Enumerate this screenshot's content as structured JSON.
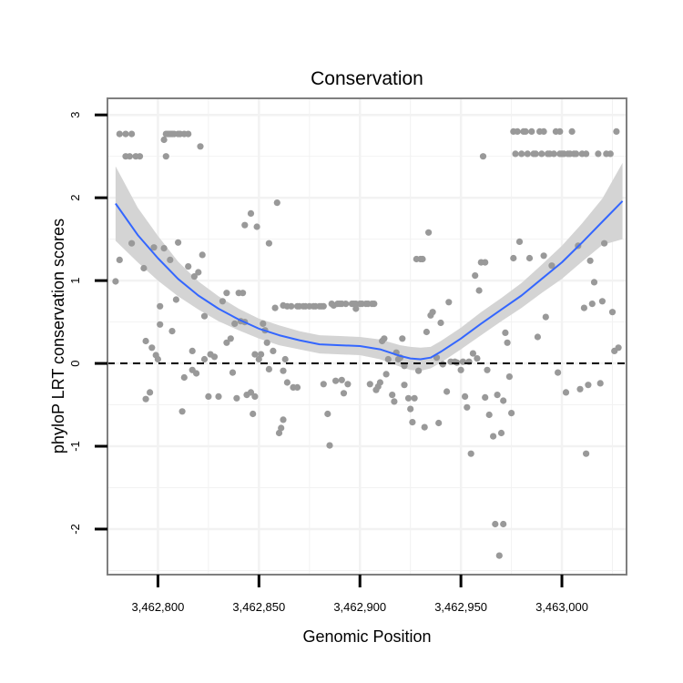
{
  "chart_data": {
    "type": "scatter",
    "title": "Conservation",
    "xlabel": "Genomic Position",
    "ylabel": "phyloP LRT conservation scores",
    "xlim": [
      3462775,
      3463032
    ],
    "ylim": [
      -2.55,
      3.2
    ],
    "x_ticks": [
      3462800,
      3462850,
      3462900,
      3462950,
      3463000
    ],
    "x_tick_labels": [
      "3,462,800",
      "3,462,850",
      "3,462,900",
      "3,462,950",
      "3,463,000"
    ],
    "y_ticks": [
      -2,
      -1,
      0,
      1,
      2,
      3
    ],
    "y_tick_labels": [
      "-2",
      "-1",
      "0",
      "1",
      "2",
      "3"
    ],
    "reference_line": {
      "y": 0,
      "style": "dashed"
    },
    "colors": {
      "points": "#999999",
      "smooth": "#3366FF",
      "ribbon": "#D4D4D4",
      "grid": "#F2F2F2",
      "border": "#7F7F7F"
    },
    "smooth": {
      "x": [
        3462779,
        3462790,
        3462800,
        3462810,
        3462820,
        3462830,
        3462840,
        3462850,
        3462860,
        3462870,
        3462880,
        3462890,
        3462900,
        3462910,
        3462920,
        3462925,
        3462930,
        3462935,
        3462940,
        3462950,
        3462960,
        3462970,
        3462980,
        3462990,
        3463000,
        3463010,
        3463020,
        3463030
      ],
      "y": [
        1.93,
        1.55,
        1.27,
        1.02,
        0.82,
        0.66,
        0.53,
        0.42,
        0.34,
        0.28,
        0.23,
        0.22,
        0.21,
        0.17,
        0.09,
        0.06,
        0.05,
        0.07,
        0.14,
        0.3,
        0.48,
        0.65,
        0.82,
        1.02,
        1.22,
        1.46,
        1.71,
        1.96
      ],
      "lower": [
        1.48,
        1.22,
        1.0,
        0.81,
        0.65,
        0.51,
        0.4,
        0.3,
        0.22,
        0.17,
        0.12,
        0.11,
        0.1,
        0.05,
        -0.04,
        -0.08,
        -0.09,
        -0.06,
        0.01,
        0.17,
        0.34,
        0.51,
        0.67,
        0.85,
        1.02,
        1.23,
        1.43,
        1.5
      ],
      "upper": [
        2.38,
        1.88,
        1.54,
        1.23,
        0.99,
        0.81,
        0.66,
        0.54,
        0.46,
        0.39,
        0.34,
        0.33,
        0.32,
        0.29,
        0.22,
        0.2,
        0.19,
        0.2,
        0.27,
        0.43,
        0.62,
        0.79,
        0.97,
        1.19,
        1.42,
        1.69,
        1.99,
        2.42
      ]
    },
    "points": [
      [
        3462779,
        0.99
      ],
      [
        3462781,
        2.77
      ],
      [
        3462781,
        1.25
      ],
      [
        3462784,
        2.77
      ],
      [
        3462784,
        2.5
      ],
      [
        3462786,
        2.5
      ],
      [
        3462787,
        2.77
      ],
      [
        3462787,
        1.45
      ],
      [
        3462789,
        2.5
      ],
      [
        3462791,
        2.5
      ],
      [
        3462793,
        1.15
      ],
      [
        3462794,
        0.27
      ],
      [
        3462794,
        -0.43
      ],
      [
        3462796,
        -0.35
      ],
      [
        3462797,
        0.19
      ],
      [
        3462798,
        1.4
      ],
      [
        3462799,
        0.1
      ],
      [
        3462800,
        0.05
      ],
      [
        3462801,
        0.47
      ],
      [
        3462801,
        0.69
      ],
      [
        3462803,
        2.7
      ],
      [
        3462803,
        1.39
      ],
      [
        3462804,
        2.5
      ],
      [
        3462804,
        2.77
      ],
      [
        3462805,
        2.77
      ],
      [
        3462806,
        2.77
      ],
      [
        3462806,
        1.25
      ],
      [
        3462807,
        2.77
      ],
      [
        3462807,
        0.39
      ],
      [
        3462808,
        2.77
      ],
      [
        3462809,
        0.77
      ],
      [
        3462810,
        2.77
      ],
      [
        3462810,
        1.46
      ],
      [
        3462811,
        2.77
      ],
      [
        3462812,
        -0.58
      ],
      [
        3462813,
        -0.17
      ],
      [
        3462813,
        2.77
      ],
      [
        3462815,
        1.17
      ],
      [
        3462815,
        2.77
      ],
      [
        3462817,
        0.15
      ],
      [
        3462817,
        -0.08
      ],
      [
        3462818,
        1.05
      ],
      [
        3462819,
        -0.12
      ],
      [
        3462820,
        1.1
      ],
      [
        3462821,
        2.62
      ],
      [
        3462822,
        1.31
      ],
      [
        3462823,
        0.05
      ],
      [
        3462823,
        0.57
      ],
      [
        3462825,
        -0.4
      ],
      [
        3462826,
        0.11
      ],
      [
        3462828,
        0.08
      ],
      [
        3462830,
        -0.4
      ],
      [
        3462832,
        0.75
      ],
      [
        3462834,
        0.85
      ],
      [
        3462834,
        0.25
      ],
      [
        3462836,
        0.3
      ],
      [
        3462837,
        -0.11
      ],
      [
        3462838,
        0.48
      ],
      [
        3462839,
        -0.42
      ],
      [
        3462840,
        0.85
      ],
      [
        3462841,
        0.51
      ],
      [
        3462842,
        0.85
      ],
      [
        3462843,
        1.67
      ],
      [
        3462843,
        0.5
      ],
      [
        3462844,
        -0.38
      ],
      [
        3462846,
        1.81
      ],
      [
        3462846,
        -0.35
      ],
      [
        3462847,
        -0.61
      ],
      [
        3462848,
        -0.4
      ],
      [
        3462848,
        0.11
      ],
      [
        3462849,
        1.65
      ],
      [
        3462850,
        0.05
      ],
      [
        3462851,
        0.11
      ],
      [
        3462852,
        0.48
      ],
      [
        3462853,
        0.4
      ],
      [
        3462854,
        0.25
      ],
      [
        3462855,
        -0.07
      ],
      [
        3462855,
        1.45
      ],
      [
        3462857,
        0.15
      ],
      [
        3462858,
        0.67
      ],
      [
        3462859,
        1.94
      ],
      [
        3462860,
        -0.84
      ],
      [
        3462861,
        -0.78
      ],
      [
        3462862,
        -0.09
      ],
      [
        3462862,
        -0.68
      ],
      [
        3462862,
        0.7
      ],
      [
        3462863,
        0.05
      ],
      [
        3462864,
        -0.23
      ],
      [
        3462864,
        0.69
      ],
      [
        3462866,
        0.69
      ],
      [
        3462867,
        -0.29
      ],
      [
        3462869,
        -0.29
      ],
      [
        3462869,
        0.69
      ],
      [
        3462870,
        0.69
      ],
      [
        3462872,
        0.69
      ],
      [
        3462873,
        0.69
      ],
      [
        3462875,
        0.69
      ],
      [
        3462877,
        0.69
      ],
      [
        3462878,
        0.69
      ],
      [
        3462880,
        0.69
      ],
      [
        3462881,
        0.69
      ],
      [
        3462882,
        0.69
      ],
      [
        3462882,
        -0.25
      ],
      [
        3462884,
        -0.61
      ],
      [
        3462885,
        -0.99
      ],
      [
        3462886,
        0.72
      ],
      [
        3462887,
        0.7
      ],
      [
        3462888,
        -0.21
      ],
      [
        3462889,
        0.72
      ],
      [
        3462890,
        0.72
      ],
      [
        3462891,
        -0.2
      ],
      [
        3462891,
        0.72
      ],
      [
        3462892,
        -0.36
      ],
      [
        3462893,
        0.72
      ],
      [
        3462894,
        -0.25
      ],
      [
        3462896,
        0.72
      ],
      [
        3462897,
        0.72
      ],
      [
        3462898,
        0.72
      ],
      [
        3462898,
        0.66
      ],
      [
        3462900,
        0.72
      ],
      [
        3462901,
        0.72
      ],
      [
        3462903,
        0.72
      ],
      [
        3462904,
        0.72
      ],
      [
        3462905,
        -0.25
      ],
      [
        3462906,
        0.72
      ],
      [
        3462907,
        0.72
      ],
      [
        3462908,
        -0.32
      ],
      [
        3462909,
        -0.28
      ],
      [
        3462910,
        -0.23
      ],
      [
        3462911,
        0.27
      ],
      [
        3462912,
        0.3
      ],
      [
        3462913,
        -0.13
      ],
      [
        3462914,
        0.05
      ],
      [
        3462916,
        -0.38
      ],
      [
        3462917,
        -0.46
      ],
      [
        3462918,
        0.13
      ],
      [
        3462919,
        0.05
      ],
      [
        3462920,
        0.07
      ],
      [
        3462921,
        0.3
      ],
      [
        3462922,
        -0.03
      ],
      [
        3462922,
        -0.26
      ],
      [
        3462924,
        -0.42
      ],
      [
        3462925,
        -0.55
      ],
      [
        3462926,
        -0.71
      ],
      [
        3462927,
        -0.42
      ],
      [
        3462928,
        1.26
      ],
      [
        3462929,
        -0.09
      ],
      [
        3462930,
        1.26
      ],
      [
        3462931,
        1.26
      ],
      [
        3462932,
        -0.77
      ],
      [
        3462933,
        0.38
      ],
      [
        3462934,
        1.58
      ],
      [
        3462935,
        0.58
      ],
      [
        3462936,
        0.62
      ],
      [
        3462938,
        0.07
      ],
      [
        3462939,
        -0.72
      ],
      [
        3462940,
        0.49
      ],
      [
        3462941,
        -0.01
      ],
      [
        3462943,
        -0.34
      ],
      [
        3462944,
        0.74
      ],
      [
        3462945,
        0.02
      ],
      [
        3462947,
        0.02
      ],
      [
        3462948,
        0.01
      ],
      [
        3462950,
        -0.08
      ],
      [
        3462951,
        0.02
      ],
      [
        3462952,
        -0.4
      ],
      [
        3462953,
        -0.53
      ],
      [
        3462954,
        0.02
      ],
      [
        3462955,
        -1.09
      ],
      [
        3462956,
        0.12
      ],
      [
        3462957,
        1.06
      ],
      [
        3462958,
        0.06
      ],
      [
        3462959,
        0.88
      ],
      [
        3462960,
        1.22
      ],
      [
        3462961,
        2.5
      ],
      [
        3462962,
        1.22
      ],
      [
        3462962,
        -0.41
      ],
      [
        3462963,
        -0.08
      ],
      [
        3462964,
        -0.62
      ],
      [
        3462966,
        -0.88
      ],
      [
        3462967,
        -1.94
      ],
      [
        3462968,
        -0.38
      ],
      [
        3462969,
        -2.32
      ],
      [
        3462970,
        -0.84
      ],
      [
        3462971,
        -1.94
      ],
      [
        3462971,
        -0.45
      ],
      [
        3462972,
        0.37
      ],
      [
        3462973,
        0.25
      ],
      [
        3462974,
        -0.16
      ],
      [
        3462975,
        -0.6
      ],
      [
        3462976,
        1.27
      ],
      [
        3462976,
        2.8
      ],
      [
        3462977,
        2.53
      ],
      [
        3462978,
        2.8
      ],
      [
        3462979,
        1.47
      ],
      [
        3462980,
        2.53
      ],
      [
        3462981,
        2.8
      ],
      [
        3462982,
        2.8
      ],
      [
        3462983,
        2.53
      ],
      [
        3462984,
        1.27
      ],
      [
        3462985,
        2.8
      ],
      [
        3462986,
        2.53
      ],
      [
        3462987,
        2.53
      ],
      [
        3462988,
        0.32
      ],
      [
        3462989,
        2.8
      ],
      [
        3462990,
        2.53
      ],
      [
        3462991,
        1.3
      ],
      [
        3462991,
        2.8
      ],
      [
        3462992,
        0.56
      ],
      [
        3462993,
        2.53
      ],
      [
        3462994,
        2.53
      ],
      [
        3462995,
        1.18
      ],
      [
        3462996,
        2.53
      ],
      [
        3462997,
        2.8
      ],
      [
        3462998,
        -0.11
      ],
      [
        3462999,
        2.53
      ],
      [
        3462999,
        2.8
      ],
      [
        3463000,
        2.53
      ],
      [
        3463001,
        2.53
      ],
      [
        3463002,
        -0.35
      ],
      [
        3463003,
        2.53
      ],
      [
        3463004,
        2.53
      ],
      [
        3463005,
        2.8
      ],
      [
        3463006,
        2.53
      ],
      [
        3463007,
        2.53
      ],
      [
        3463008,
        1.42
      ],
      [
        3463009,
        -0.31
      ],
      [
        3463010,
        2.53
      ],
      [
        3463011,
        0.67
      ],
      [
        3463012,
        -1.09
      ],
      [
        3463012,
        2.53
      ],
      [
        3463013,
        -0.26
      ],
      [
        3463014,
        1.24
      ],
      [
        3463015,
        0.72
      ],
      [
        3463016,
        0.98
      ],
      [
        3463018,
        2.53
      ],
      [
        3463019,
        -0.24
      ],
      [
        3463020,
        0.75
      ],
      [
        3463021,
        1.45
      ],
      [
        3463022,
        2.53
      ],
      [
        3463024,
        2.53
      ],
      [
        3463025,
        0.62
      ],
      [
        3463026,
        0.15
      ],
      [
        3463027,
        2.8
      ],
      [
        3463028,
        0.19
      ]
    ]
  }
}
